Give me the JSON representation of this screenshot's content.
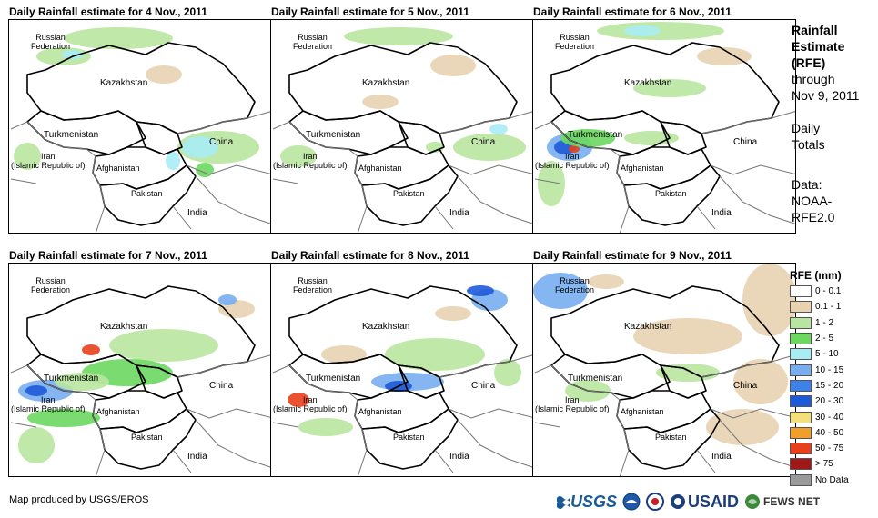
{
  "panels": [
    {
      "title": "Daily Rainfall estimate for 4 Nov., 2011"
    },
    {
      "title": "Daily Rainfall estimate for 5 Nov., 2011"
    },
    {
      "title": "Daily Rainfall estimate for 6 Nov., 2011"
    },
    {
      "title": "Daily Rainfall estimate for 7 Nov., 2011"
    },
    {
      "title": "Daily Rainfall estimate for 8 Nov., 2011"
    },
    {
      "title": "Daily Rainfall estimate for 9 Nov., 2011"
    }
  ],
  "map_labels": {
    "russia": "Russian\nFederation",
    "kazakhstan": "Kazakhstan",
    "turkmenistan": "Turkmenistan",
    "iran": "Iran\n(Islamic Republic of)",
    "afghanistan": "Afghanistan",
    "pakistan": "Pakistan",
    "china": "China",
    "india": "India"
  },
  "sidebar": {
    "title_line1": "Rainfall",
    "title_line2": "Estimate",
    "title_line3": "(RFE)",
    "through_line1": "through",
    "through_line2": "Nov 9, 2011",
    "daily_line1": "Daily",
    "daily_line2": "Totals",
    "data_line1": "Data:",
    "data_line2": "NOAA-",
    "data_line3": "RFE2.0"
  },
  "legend": {
    "title": "RFE (mm)",
    "items": [
      {
        "label": "0 - 0.1",
        "color": "#ffffff"
      },
      {
        "label": "0.1 - 1",
        "color": "#e8d2b0"
      },
      {
        "label": "1 - 2",
        "color": "#b8e6a0"
      },
      {
        "label": "2 - 5",
        "color": "#6cd860"
      },
      {
        "label": "5 - 10",
        "color": "#a8ecf4"
      },
      {
        "label": "10 - 15",
        "color": "#78aef0"
      },
      {
        "label": "15 - 20",
        "color": "#3c82e8"
      },
      {
        "label": "20 - 30",
        "color": "#1e5ad8"
      },
      {
        "label": "30 - 40",
        "color": "#f4e07a"
      },
      {
        "label": "40 - 50",
        "color": "#f0a028"
      },
      {
        "label": "50 - 75",
        "color": "#e8401c"
      },
      {
        "label": "> 75",
        "color": "#a01818"
      },
      {
        "label": "No Data",
        "color": "#9a9a9a"
      }
    ]
  },
  "credit": "Map produced by USGS/EROS",
  "logos": {
    "usgs": "USGS",
    "usaid": "USAID",
    "fewsnet": "FEWS NET"
  }
}
